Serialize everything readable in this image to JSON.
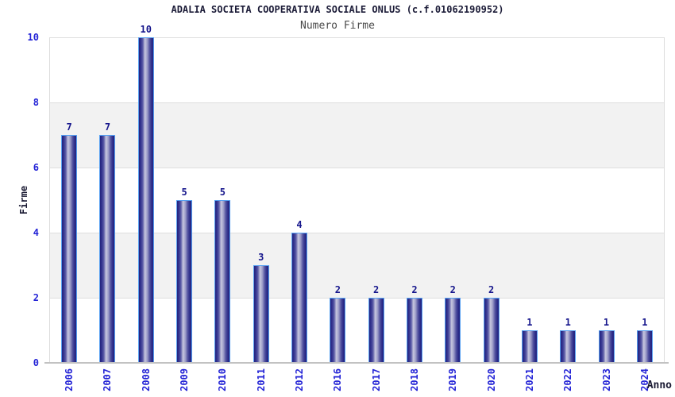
{
  "chart": {
    "title": "ADALIA SOCIETA COOPERATIVA SOCIALE ONLUS (c.f.01062190952)",
    "subtitle": "Numero Firme",
    "x_axis_title": "Anno",
    "y_axis_title": "Firme"
  },
  "chart_data": {
    "type": "bar",
    "title": "ADALIA SOCIETA COOPERATIVA SOCIALE ONLUS (c.f.01062190952)",
    "subtitle": "Numero Firme",
    "xlabel": "Anno",
    "ylabel": "Firme",
    "categories": [
      "2006",
      "2007",
      "2008",
      "2009",
      "2010",
      "2011",
      "2012",
      "2016",
      "2017",
      "2018",
      "2019",
      "2020",
      "2021",
      "2022",
      "2023",
      "2024"
    ],
    "values": [
      7,
      7,
      10,
      5,
      5,
      3,
      4,
      2,
      2,
      2,
      2,
      2,
      1,
      1,
      1,
      1
    ],
    "bar_value_labels": true,
    "ylim": [
      0,
      10
    ],
    "yticks": [
      0,
      2,
      4,
      6,
      8,
      10
    ],
    "grid": "horizontal gridlines with alternating gray/white bands",
    "legend": "none",
    "colors": {
      "title": "#1c1c38",
      "subtitle": "#4a4a4a",
      "axis-title": "#1a1a33",
      "tick-label": "#2323d6",
      "value-label": "#16168c",
      "bar-dark": "#23237f",
      "bar-light": "#c7c7df",
      "bar-border": "#56a0f2",
      "band": "#f2f2f2",
      "gridline": "#dedede",
      "axis-line": "#c2c2c2",
      "plot-border": "#dcdcdc",
      "background": "#ffffff"
    }
  }
}
